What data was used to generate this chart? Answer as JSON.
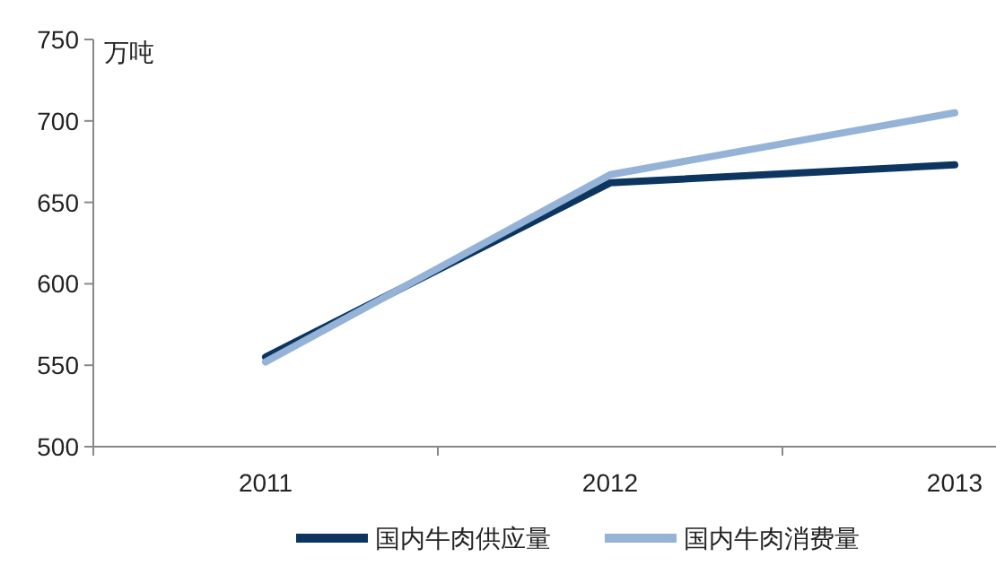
{
  "chart_data": {
    "type": "line",
    "ylabel": "万吨",
    "categories": [
      "2011",
      "2012",
      "2013"
    ],
    "series": [
      {
        "name": "国内牛肉供应量",
        "color": "#0c3660",
        "values": [
          555,
          662,
          673
        ]
      },
      {
        "name": "国内牛肉消费量",
        "color": "#95b3d7",
        "values": [
          552,
          667,
          705
        ]
      }
    ],
    "ylim": [
      500,
      750
    ],
    "yticks": [
      500,
      550,
      600,
      650,
      700,
      750
    ],
    "legend": "bottom",
    "marker": "none",
    "line_style": "solid",
    "grid": false
  }
}
